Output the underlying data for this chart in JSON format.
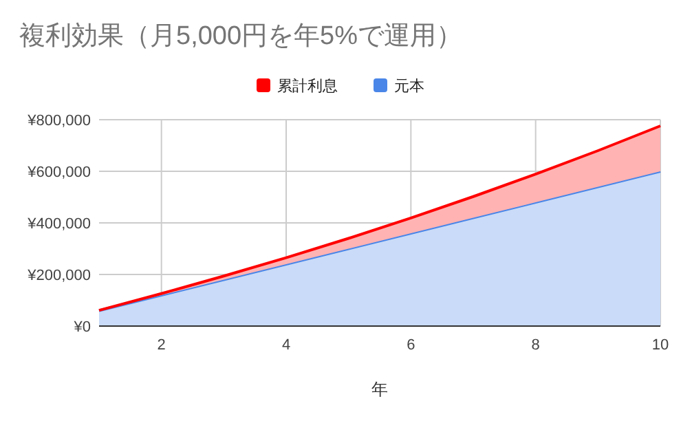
{
  "chart_data": {
    "type": "area",
    "title": "複利効果（月5,000円を年5%で運用）",
    "xlabel": "年",
    "stacked": true,
    "x": [
      1,
      2,
      3,
      4,
      5,
      6,
      7,
      8,
      9,
      10
    ],
    "series": [
      {
        "name": "元本",
        "color": "#4a86e8",
        "values": [
          60000,
          120000,
          180000,
          240000,
          300000,
          360000,
          420000,
          480000,
          540000,
          600000
        ]
      },
      {
        "name": "累計利息",
        "color": "#ff0000",
        "values": [
          1000,
          6000,
          14000,
          25000,
          40000,
          59000,
          82000,
          109000,
          140000,
          176000
        ]
      }
    ],
    "xlim": [
      1,
      10
    ],
    "xticks": [
      2,
      4,
      6,
      8,
      10
    ],
    "ylim": [
      0,
      800000
    ],
    "yticks": [
      {
        "value": 0,
        "label": "¥0"
      },
      {
        "value": 200000,
        "label": "¥200,000"
      },
      {
        "value": 400000,
        "label": "¥400,000"
      },
      {
        "value": 600000,
        "label": "¥600,000"
      },
      {
        "value": 800000,
        "label": "¥800,000"
      }
    ],
    "grid": true,
    "legend": "top"
  }
}
